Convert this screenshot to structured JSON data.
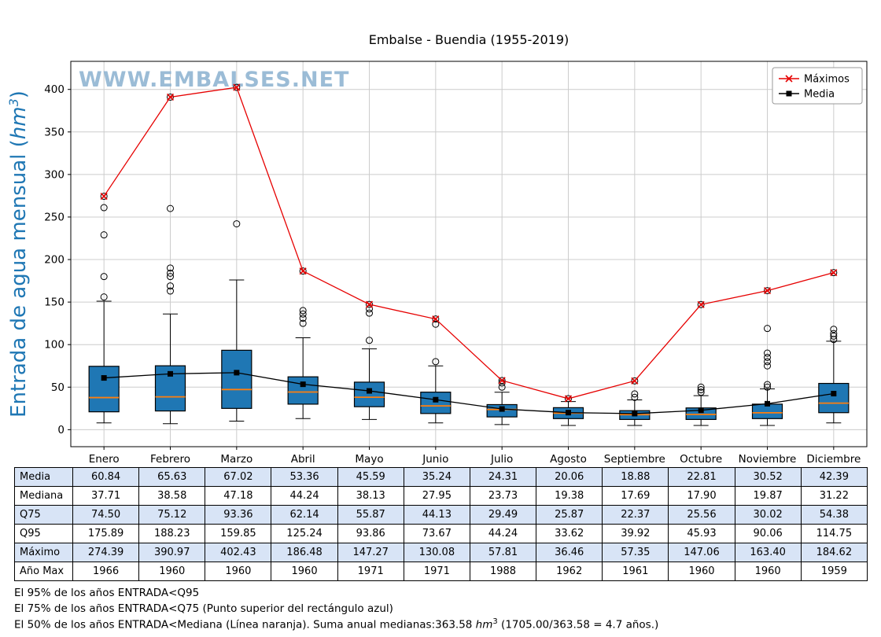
{
  "page": {
    "watermark": "WWW.EMBALSES.NET"
  },
  "chart_data": {
    "type": "boxplot",
    "title": "Embalse - Buendia (1955-2019)",
    "ylabel_parts": {
      "prefix": "Entrada de agua mensual (",
      "unit": "hm",
      "sup": "3",
      "suffix": ")"
    },
    "ylim": [
      -20,
      433
    ],
    "yticks": [
      0,
      50,
      100,
      150,
      200,
      250,
      300,
      350,
      400
    ],
    "grid": true,
    "legend_position": "top-right",
    "categories": [
      "Enero",
      "Febrero",
      "Marzo",
      "Abril",
      "Mayo",
      "Junio",
      "Julio",
      "Agosto",
      "Septiembre",
      "Octubre",
      "Noviembre",
      "Diciembre"
    ],
    "boxes": [
      {
        "q1": 21,
        "median": 37.71,
        "q3": 74.5,
        "whisker_low": 8,
        "whisker_high": 151,
        "outliers": [
          156,
          180,
          229,
          261,
          274.39
        ]
      },
      {
        "q1": 22,
        "median": 38.58,
        "q3": 75.12,
        "whisker_low": 7,
        "whisker_high": 136,
        "outliers": [
          163,
          169,
          180,
          184,
          190,
          260,
          390.97
        ]
      },
      {
        "q1": 25,
        "median": 47.18,
        "q3": 93.36,
        "whisker_low": 10,
        "whisker_high": 176,
        "outliers": [
          242,
          402.43
        ]
      },
      {
        "q1": 30,
        "median": 44.24,
        "q3": 62.14,
        "whisker_low": 13,
        "whisker_high": 108,
        "outliers": [
          125,
          131,
          136,
          140,
          186.48
        ]
      },
      {
        "q1": 27,
        "median": 38.13,
        "q3": 55.87,
        "whisker_low": 12,
        "whisker_high": 95,
        "outliers": [
          105,
          137,
          142,
          147.27
        ]
      },
      {
        "q1": 19,
        "median": 27.95,
        "q3": 44.13,
        "whisker_low": 8,
        "whisker_high": 75,
        "outliers": [
          80,
          124,
          130.08
        ]
      },
      {
        "q1": 15,
        "median": 23.73,
        "q3": 29.49,
        "whisker_low": 6,
        "whisker_high": 44,
        "outliers": [
          50,
          55,
          57.81
        ]
      },
      {
        "q1": 13,
        "median": 19.38,
        "q3": 25.87,
        "whisker_low": 5,
        "whisker_high": 33,
        "outliers": [
          36.46
        ]
      },
      {
        "q1": 12,
        "median": 17.69,
        "q3": 22.37,
        "whisker_low": 5,
        "whisker_high": 35,
        "outliers": [
          38,
          42,
          57.35
        ]
      },
      {
        "q1": 12,
        "median": 17.9,
        "q3": 25.56,
        "whisker_low": 5,
        "whisker_high": 40,
        "outliers": [
          44,
          47,
          50,
          147.06
        ]
      },
      {
        "q1": 13,
        "median": 19.87,
        "q3": 30.02,
        "whisker_low": 5,
        "whisker_high": 48,
        "outliers": [
          50,
          53,
          75,
          80,
          85,
          90,
          119,
          163.4
        ]
      },
      {
        "q1": 20,
        "median": 31.22,
        "q3": 54.38,
        "whisker_low": 8,
        "whisker_high": 104,
        "outliers": [
          106,
          110,
          113,
          118,
          184.62
        ]
      }
    ],
    "series": [
      {
        "name": "Máximos",
        "color": "#e60000",
        "marker": "x",
        "values": [
          274.39,
          390.97,
          402.43,
          186.48,
          147.27,
          130.08,
          57.81,
          36.46,
          57.35,
          147.06,
          163.4,
          184.62
        ]
      },
      {
        "name": "Media",
        "color": "#000000",
        "marker": "square",
        "values": [
          60.84,
          65.63,
          67.02,
          53.36,
          45.59,
          35.24,
          24.31,
          20.06,
          18.88,
          22.81,
          30.52,
          42.39
        ]
      }
    ],
    "colors": {
      "box_fill": "#1f77b4",
      "box_edge": "#000000",
      "median": "#ff7f0e",
      "grid": "#cccccc",
      "ylabel": "#1f77b4",
      "watermark": "#8ab1d0",
      "table_alt_row": "#d8e4f6"
    }
  },
  "table": {
    "shaded_rows": [
      0,
      2,
      4
    ],
    "rows": [
      {
        "label": "Media",
        "values": [
          "60.84",
          "65.63",
          "67.02",
          "53.36",
          "45.59",
          "35.24",
          "24.31",
          "20.06",
          "18.88",
          "22.81",
          "30.52",
          "42.39"
        ]
      },
      {
        "label": "Mediana",
        "values": [
          "37.71",
          "38.58",
          "47.18",
          "44.24",
          "38.13",
          "27.95",
          "23.73",
          "19.38",
          "17.69",
          "17.90",
          "19.87",
          "31.22"
        ]
      },
      {
        "label": "Q75",
        "values": [
          "74.50",
          "75.12",
          "93.36",
          "62.14",
          "55.87",
          "44.13",
          "29.49",
          "25.87",
          "22.37",
          "25.56",
          "30.02",
          "54.38"
        ]
      },
      {
        "label": "Q95",
        "values": [
          "175.89",
          "188.23",
          "159.85",
          "125.24",
          "93.86",
          "73.67",
          "44.24",
          "33.62",
          "39.92",
          "45.93",
          "90.06",
          "114.75"
        ]
      },
      {
        "label": "Máximo",
        "values": [
          "274.39",
          "390.97",
          "402.43",
          "186.48",
          "147.27",
          "130.08",
          "57.81",
          "36.46",
          "57.35",
          "147.06",
          "163.40",
          "184.62"
        ]
      },
      {
        "label": "Año Max",
        "values": [
          "1966",
          "1960",
          "1960",
          "1960",
          "1971",
          "1971",
          "1988",
          "1962",
          "1961",
          "1960",
          "1960",
          "1959"
        ]
      }
    ]
  },
  "footnotes": {
    "line1": "El 95% de los años ENTRADA<Q95",
    "line2": "El 75% de los años ENTRADA<Q75 (Punto superior del rectángulo azul)",
    "line3_prefix": "El 50% de los años ENTRADA<Mediana (Línea naranja). Suma anual medianas:363.58 ",
    "line3_unit": "hm",
    "line3_sup": "3",
    "line3_suffix": " (1705.00/363.58 = 4.7 años.)"
  }
}
